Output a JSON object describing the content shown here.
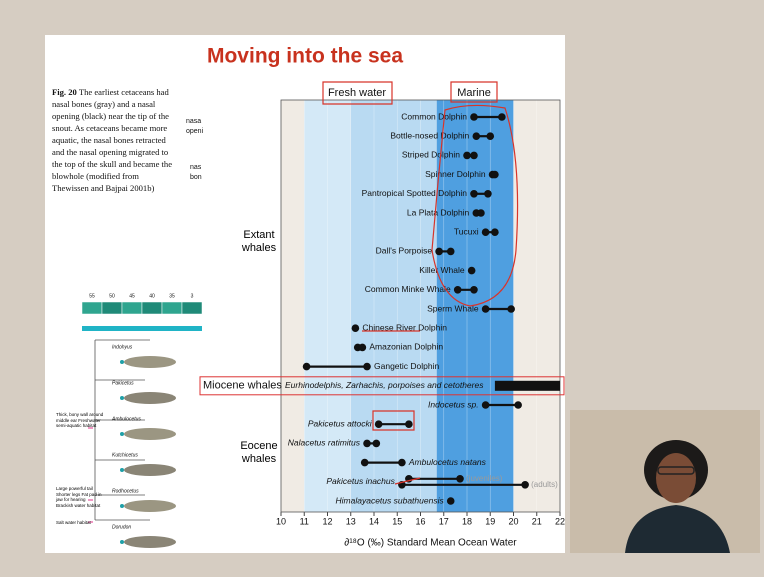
{
  "slide": {
    "title": "Moving into the sea",
    "caption": {
      "label": "Fig. 20",
      "text": "The earliest cetaceans had nasal bones (gray) and a nasal opening (black) near the tip of the snout. As cetaceans became more aquatic, the nasal bones retracted and the nasal opening migrated to the top of the skull and became the blowhole (modified from Thewissen and Bajpai 2001b)"
    },
    "fragments": [
      "nasa",
      "openi",
      "nas",
      "bon"
    ],
    "phylogeny": {
      "timeline": [
        "55",
        "50",
        "45",
        "40",
        "35",
        "3"
      ],
      "taxa": [
        "Indohyus",
        "Pakicetus",
        "Ambulocetus",
        "Kutchicetus",
        "Rodhocetus",
        "Dorudon"
      ],
      "notes": [
        "Thick, bony wall around middle ear Freshwater semi-aquatic habitat",
        "Large powerful tail Shorter legs Fat pad in jaw for hearing Brackish water habitat",
        "Salt water habitat"
      ]
    }
  },
  "chart_data": {
    "type": "dot-range",
    "headers": [
      "Fresh water",
      "Marine"
    ],
    "x_label": "∂¹⁸O (‰) Standard Mean Ocean Water",
    "xlim": [
      10,
      22
    ],
    "xticks": [
      10,
      11,
      12,
      13,
      14,
      15,
      16,
      17,
      18,
      19,
      20,
      21,
      22
    ],
    "grid": true,
    "bands": [
      {
        "range": [
          11,
          13
        ],
        "color": "#d4e9f7"
      },
      {
        "range": [
          13,
          16.7
        ],
        "color": "#b9daf2"
      },
      {
        "range": [
          16.7,
          20
        ],
        "color": "#4f9fe0"
      }
    ],
    "color": "#111111",
    "note_color": "#9a9a9a",
    "groups": [
      {
        "label": "Extant whales",
        "rows": [
          {
            "label": "Common Dolphin",
            "values": [
              18.3,
              19.5
            ]
          },
          {
            "label": "Bottle-nosed Dolphin",
            "values": [
              18.4,
              19.0
            ]
          },
          {
            "label": "Striped Dolphin",
            "values": [
              18.0,
              18.3
            ]
          },
          {
            "label": "Spinner Dolphin",
            "values": [
              19.1,
              19.2
            ]
          },
          {
            "label": "Pantropical Spotted Dolphin",
            "values": [
              18.3,
              18.9
            ]
          },
          {
            "label": "La Plata Dolphin",
            "values": [
              18.4,
              18.6
            ]
          },
          {
            "label": "Tucuxi",
            "values": [
              18.8,
              19.2
            ]
          },
          {
            "label": "Dall's Porpoise",
            "values": [
              16.8,
              17.3
            ]
          },
          {
            "label": "Killer Whale",
            "values": [
              18.2
            ]
          },
          {
            "label": "Common Minke Whale",
            "values": [
              17.6,
              18.3
            ]
          },
          {
            "label": "Sperm Whale",
            "values": [
              18.8,
              19.9
            ]
          },
          {
            "label": "Chinese River Dolphin",
            "values": [
              13.2
            ]
          },
          {
            "label": "Amazonian Dolphin",
            "values": [
              13.3,
              13.5
            ]
          },
          {
            "label": "Gangetic Dolphin",
            "values": [
              11.1,
              13.7
            ]
          }
        ]
      },
      {
        "label": "Miocene whales",
        "rows": [
          {
            "label": "Eurhinodelphis, Zarhachis, porpoises and cetotheres",
            "values": [
              19.2,
              22
            ],
            "thick": true
          }
        ]
      },
      {
        "label": "Eocene whales",
        "rows": [
          {
            "label": "Indocetus sp.",
            "values": [
              18.8,
              20.2
            ]
          },
          {
            "label": "Pakicetus attocki",
            "values": [
              14.2,
              15.5
            ]
          },
          {
            "label": "Nalacetus ratimitus",
            "values": [
              13.7,
              14.1
            ]
          },
          {
            "label": "Ambulocetus natans",
            "values": [
              13.6,
              15.2
            ]
          },
          {
            "label": "Pakicetus inachus",
            "ranges": [
              {
                "values": [
                  15.5,
                  17.7
                ],
                "note": "(juveniles)"
              },
              {
                "values": [
                  15.2,
                  20.5
                ],
                "note": "(adults)"
              }
            ]
          },
          {
            "label": "Himalayacetus subathuensis",
            "values": [
              17.3
            ]
          }
        ]
      }
    ]
  }
}
